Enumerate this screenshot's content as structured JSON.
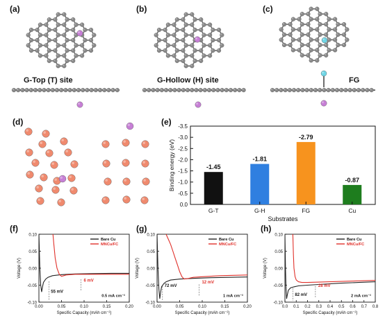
{
  "panels": {
    "a": {
      "letter": "(a)",
      "label": "G-Top (T) site"
    },
    "b": {
      "letter": "(b)",
      "label": "G-Hollow (H) site"
    },
    "c": {
      "letter": "(c)",
      "label": "FG"
    },
    "d": {
      "letter": "(d)"
    },
    "e": {
      "letter": "(e)"
    },
    "f": {
      "letter": "(f)"
    },
    "g": {
      "letter": "(g)"
    },
    "h": {
      "letter": "(h)"
    }
  },
  "colors": {
    "carbon": "#8a8a8a",
    "lithium": "#c77fd6",
    "fluorine": "#6fd6e6",
    "copper": "#f08a6e",
    "bare_cu": "#222222",
    "mncu_fc": "#e0302a",
    "bar_gt": "#111111",
    "bar_gh": "#2f7fe0",
    "bar_fg": "#f7931e",
    "bar_cu": "#1e7d1e"
  },
  "chart_data": [
    {
      "id": "e",
      "type": "bar",
      "categories": [
        "G-T",
        "G-H",
        "FG",
        "Cu"
      ],
      "values": [
        -1.45,
        -1.81,
        -2.79,
        -0.87
      ],
      "data_labels": [
        "-1.45",
        "-1.81",
        "-2.79",
        "-0.87"
      ],
      "xlabel": "Substrates",
      "ylabel": "Binding energy (eV)",
      "ylim": [
        0.0,
        -3.5
      ],
      "yticks": [
        "0.0",
        "-0.5",
        "-1.0",
        "-1.5",
        "-2.0",
        "-2.5",
        "-3.0",
        "-3.5"
      ],
      "bar_colors": [
        "#111111",
        "#2f7fe0",
        "#f7931e",
        "#1e7d1e"
      ]
    },
    {
      "id": "f",
      "type": "line",
      "xlabel": "Specific Capacity (mAh cm⁻²)",
      "ylabel": "Voltage (V)",
      "xlim": [
        0.0,
        0.2
      ],
      "ylim": [
        -0.1,
        0.1
      ],
      "xticks": [
        "0.00",
        "0.05",
        "0.10",
        "0.15",
        "0.20"
      ],
      "yticks": [
        "-0.10",
        "-0.05",
        "0.00",
        "0.05",
        "0.10"
      ],
      "legend": [
        "Bare Cu",
        "MNCu/FC"
      ],
      "annotations": {
        "bare": "55 mV",
        "mncu": "6 mV",
        "current": "0.5 mA cm⁻²"
      },
      "series": [
        {
          "name": "Bare Cu",
          "x": [
            0.0,
            0.002,
            0.004,
            0.006,
            0.008,
            0.01,
            0.015,
            0.02,
            0.03,
            0.05,
            0.08,
            0.12,
            0.16,
            0.2
          ],
          "y": [
            0.1,
            0.0,
            -0.05,
            -0.07,
            -0.055,
            -0.042,
            -0.032,
            -0.027,
            -0.022,
            -0.019,
            -0.017,
            -0.016,
            -0.015,
            -0.015
          ]
        },
        {
          "name": "MNCu/FC",
          "x": [
            0.031,
            0.033,
            0.036,
            0.04,
            0.045,
            0.05,
            0.055,
            0.06,
            0.07,
            0.08,
            0.1,
            0.14,
            0.2
          ],
          "y": [
            0.1,
            0.07,
            0.03,
            0.0,
            -0.018,
            -0.024,
            -0.022,
            -0.02,
            -0.019,
            -0.018,
            -0.018,
            -0.018,
            -0.018
          ]
        }
      ]
    },
    {
      "id": "g",
      "type": "line",
      "xlabel": "Specific Capacity (mAh cm⁻²)",
      "ylabel": "Voltage (V)",
      "xlim": [
        0.0,
        0.2
      ],
      "ylim": [
        -0.1,
        0.1
      ],
      "xticks": [
        "0.00",
        "0.05",
        "0.10",
        "0.15",
        "0.20"
      ],
      "yticks": [
        "-0.10",
        "-0.05",
        "0.00",
        "0.05",
        "0.10"
      ],
      "legend": [
        "Bare Cu",
        "MNCu/FC"
      ],
      "annotations": {
        "bare": "72 mV",
        "mncu": "12 mV",
        "current": "1 mA cm⁻²"
      },
      "series": [
        {
          "name": "Bare Cu",
          "x": [
            0.0,
            0.002,
            0.004,
            0.006,
            0.008,
            0.01,
            0.015,
            0.02,
            0.03,
            0.05,
            0.08,
            0.12,
            0.16,
            0.2
          ],
          "y": [
            0.1,
            0.0,
            -0.06,
            -0.09,
            -0.07,
            -0.055,
            -0.045,
            -0.04,
            -0.035,
            -0.032,
            -0.03,
            -0.028,
            -0.027,
            -0.026
          ]
        },
        {
          "name": "MNCu/FC",
          "x": [
            0.02,
            0.025,
            0.03,
            0.035,
            0.04,
            0.045,
            0.05,
            0.055,
            0.06,
            0.07,
            0.08,
            0.1,
            0.14,
            0.2
          ],
          "y": [
            0.1,
            0.085,
            0.07,
            0.05,
            0.03,
            0.01,
            -0.01,
            -0.025,
            -0.032,
            -0.03,
            -0.027,
            -0.025,
            -0.022,
            -0.02
          ]
        }
      ]
    },
    {
      "id": "h",
      "type": "line",
      "xlabel": "Specific Capacity (mAh cm⁻²)",
      "ylabel": "Voltage (V)",
      "xlim": [
        0.0,
        0.8
      ],
      "ylim": [
        -0.1,
        0.1
      ],
      "xticks": [
        "0.0",
        "0.1",
        "0.2",
        "0.3",
        "0.4",
        "0.5",
        "0.6",
        "0.7",
        "0.8"
      ],
      "yticks": [
        "-0.10",
        "-0.05",
        "0.00",
        "0.05",
        "0.10"
      ],
      "legend": [
        "Bare Cu",
        "MNCu/FC"
      ],
      "annotations": {
        "bare": "82 mV",
        "mncu": "28 mV",
        "current": "2 mA cm⁻²"
      },
      "series": [
        {
          "name": "Bare Cu",
          "x": [
            0.0,
            0.005,
            0.01,
            0.015,
            0.02,
            0.03,
            0.05,
            0.08,
            0.12,
            0.2,
            0.35,
            0.5,
            0.65,
            0.8
          ],
          "y": [
            0.1,
            0.0,
            -0.06,
            -0.09,
            -0.08,
            -0.065,
            -0.058,
            -0.055,
            -0.052,
            -0.05,
            -0.047,
            -0.044,
            -0.042,
            -0.04
          ]
        },
        {
          "name": "MNCu/FC",
          "x": [
            0.07,
            0.075,
            0.08,
            0.09,
            0.1,
            0.12,
            0.15,
            0.2,
            0.3,
            0.4,
            0.5,
            0.6,
            0.7,
            0.8
          ],
          "y": [
            0.1,
            0.04,
            0.0,
            -0.025,
            -0.035,
            -0.04,
            -0.042,
            -0.042,
            -0.041,
            -0.04,
            -0.039,
            -0.038,
            -0.037,
            -0.036
          ]
        }
      ]
    }
  ]
}
